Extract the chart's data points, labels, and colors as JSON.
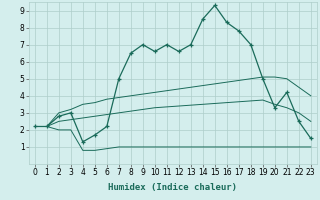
{
  "xlabel": "Humidex (Indice chaleur)",
  "x_values": [
    0,
    1,
    2,
    3,
    4,
    5,
    6,
    7,
    8,
    9,
    10,
    11,
    12,
    13,
    14,
    15,
    16,
    17,
    18,
    19,
    20,
    21,
    22,
    23
  ],
  "line_data": [
    2.2,
    2.2,
    2.8,
    3.0,
    1.3,
    1.7,
    2.2,
    5.0,
    6.5,
    7.0,
    6.6,
    7.0,
    6.6,
    7.0,
    8.5,
    9.3,
    8.3,
    7.8,
    7.0,
    5.0,
    3.3,
    4.2,
    2.5,
    1.5
  ],
  "max_line": [
    2.2,
    2.2,
    3.0,
    3.2,
    3.5,
    3.6,
    3.8,
    3.9,
    4.0,
    4.1,
    4.2,
    4.3,
    4.4,
    4.5,
    4.6,
    4.7,
    4.8,
    4.9,
    5.0,
    5.1,
    5.1,
    5.0,
    4.5,
    4.0
  ],
  "mean_line": [
    2.2,
    2.2,
    2.5,
    2.6,
    2.7,
    2.8,
    2.9,
    3.0,
    3.1,
    3.2,
    3.3,
    3.35,
    3.4,
    3.45,
    3.5,
    3.55,
    3.6,
    3.65,
    3.7,
    3.75,
    3.5,
    3.3,
    3.0,
    2.5
  ],
  "min_line": [
    2.2,
    2.2,
    2.0,
    2.0,
    0.8,
    0.8,
    0.9,
    1.0,
    1.0,
    1.0,
    1.0,
    1.0,
    1.0,
    1.0,
    1.0,
    1.0,
    1.0,
    1.0,
    1.0,
    1.0,
    1.0,
    1.0,
    1.0,
    1.0
  ],
  "line_color": "#1a6b5a",
  "bg_color": "#d4eeed",
  "grid_color": "#aececa",
  "ylim": [
    0,
    9.5
  ],
  "xlim": [
    -0.5,
    23.5
  ],
  "yticks": [
    1,
    2,
    3,
    4,
    5,
    6,
    7,
    8,
    9
  ],
  "xticks": [
    0,
    1,
    2,
    3,
    4,
    5,
    6,
    7,
    8,
    9,
    10,
    11,
    12,
    13,
    14,
    15,
    16,
    17,
    18,
    19,
    20,
    21,
    22,
    23
  ],
  "tick_fontsize": 5.5,
  "xlabel_fontsize": 6.5
}
